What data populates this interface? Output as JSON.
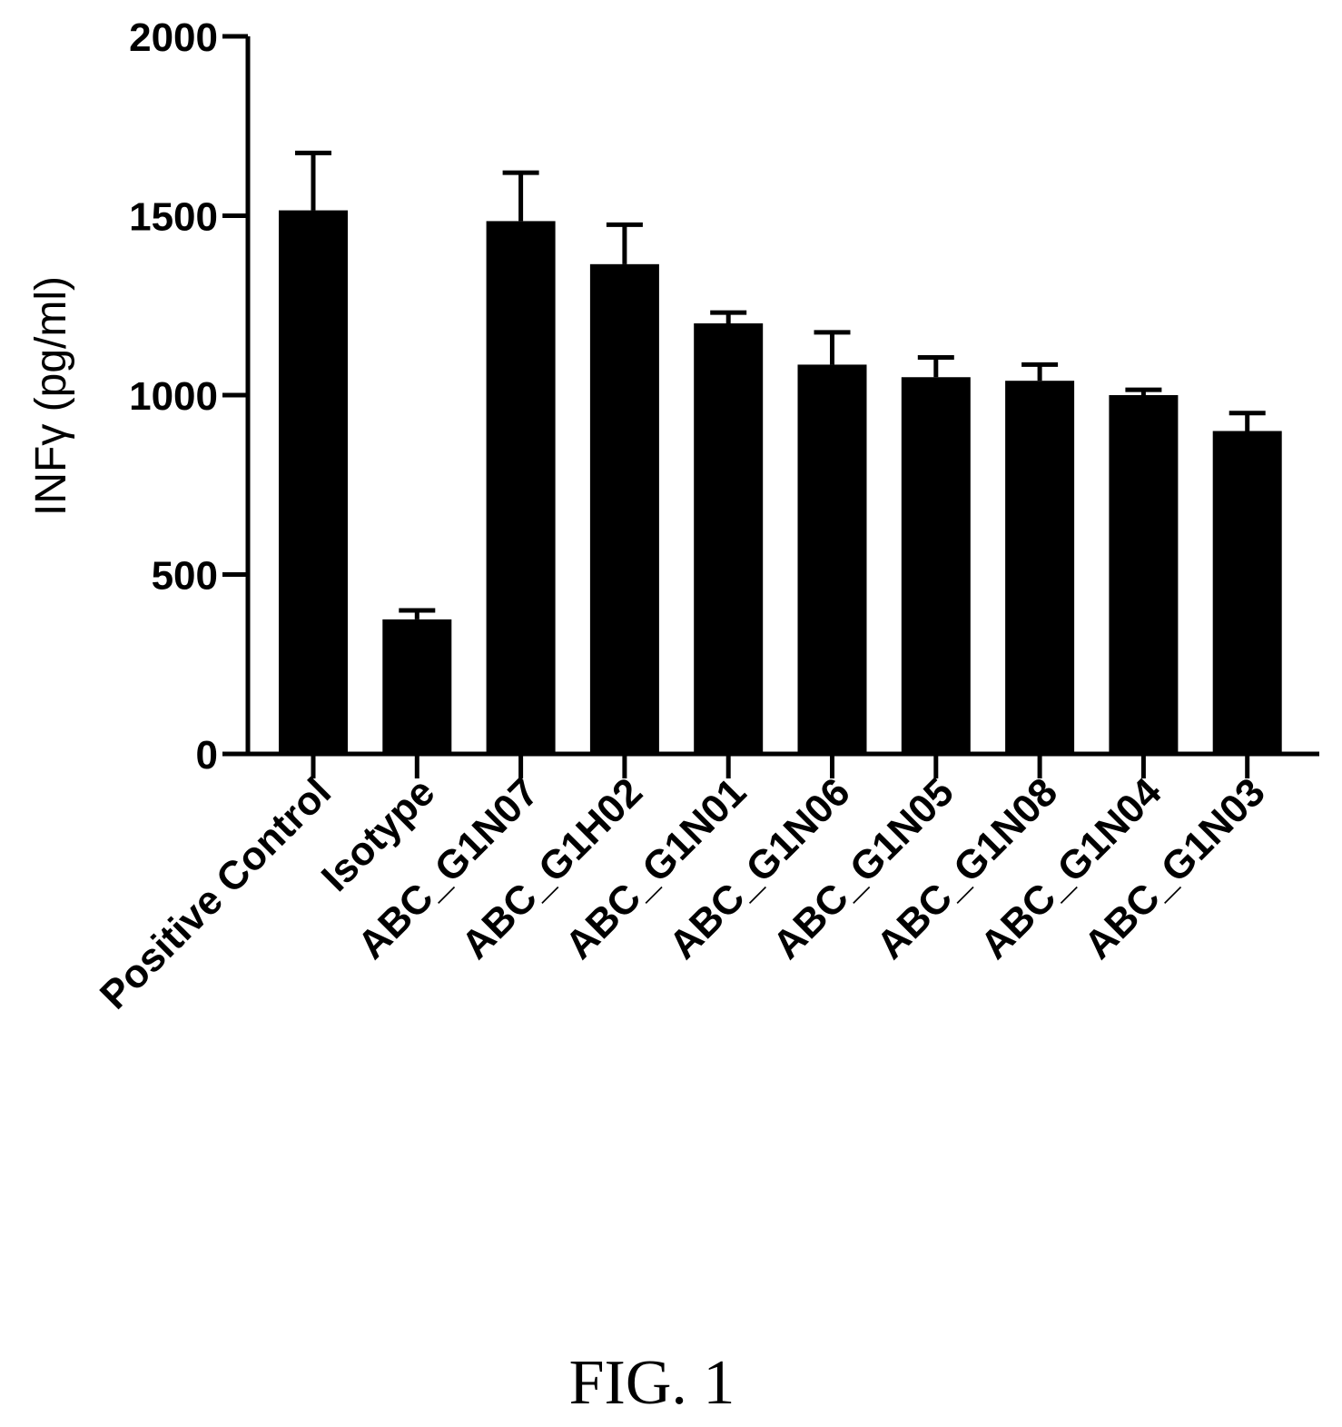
{
  "chart_data": {
    "type": "bar",
    "title": "",
    "xlabel": "",
    "ylabel": "INFγ (pg/ml)",
    "ylim": [
      0,
      2000
    ],
    "yticks": [
      0,
      500,
      1000,
      1500,
      2000
    ],
    "grid": false,
    "legend": "none",
    "bar_color": "#000000",
    "categories": [
      "Positive Control",
      "Isotype",
      "ABC_G1N07",
      "ABC_G1H02",
      "ABC_G1N01",
      "ABC_G1N06",
      "ABC_G1N05",
      "ABC_G1N08",
      "ABC_G1N04",
      "ABC_G1N03"
    ],
    "values": [
      1515,
      375,
      1485,
      1365,
      1200,
      1085,
      1050,
      1040,
      1000,
      900
    ],
    "errors": [
      160,
      25,
      135,
      110,
      30,
      90,
      55,
      45,
      15,
      50
    ]
  },
  "caption": "FIG. 1"
}
